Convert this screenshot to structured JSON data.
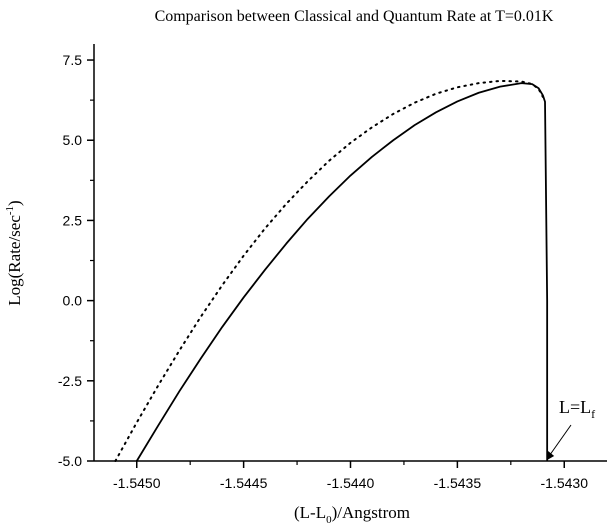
{
  "chart_data": {
    "type": "line",
    "title": "Comparison between Classical and Quantum Rate at T=0.01K",
    "xlabel": {
      "main": "(L-L",
      "sub": "0",
      "rest": ")/Angstrom"
    },
    "ylabel": {
      "main": "Log(Rate/sec",
      "sup": "-1",
      "rest": ")"
    },
    "xlim": [
      -1.5452,
      -1.5428
    ],
    "ylim": [
      -5.0,
      8.0
    ],
    "x_ticks": [
      -1.545,
      -1.5445,
      -1.544,
      -1.5435,
      -1.543
    ],
    "x_tick_labels": [
      "-1.5450",
      "-1.5445",
      "-1.5440",
      "-1.5435",
      "-1.5430"
    ],
    "y_ticks": [
      -5.0,
      -2.5,
      0.0,
      2.5,
      5.0,
      7.5
    ],
    "y_tick_labels": [
      "-5.0",
      "-2.5",
      "0.0",
      "2.5",
      "5.0",
      "7.5"
    ],
    "grid": false,
    "series": [
      {
        "style": "solid",
        "color": "#000000",
        "x": [
          -1.545,
          -1.5449,
          -1.5448,
          -1.5447,
          -1.5446,
          -1.5445,
          -1.5444,
          -1.5443,
          -1.5442,
          -1.5441,
          -1.544,
          -1.5439,
          -1.5438,
          -1.5437,
          -1.5436,
          -1.5435,
          -1.5434,
          -1.5433,
          -1.5432,
          -1.54315,
          -1.54312,
          -1.5431,
          -1.54309,
          -1.54308,
          -1.54308
        ],
        "y": [
          -5.0,
          -3.9,
          -2.82,
          -1.8,
          -0.82,
          0.1,
          0.96,
          1.78,
          2.55,
          3.25,
          3.9,
          4.48,
          5.0,
          5.47,
          5.87,
          6.21,
          6.48,
          6.67,
          6.78,
          6.75,
          6.62,
          6.4,
          6.2,
          0.0,
          -5.0
        ]
      },
      {
        "style": "dotted",
        "color": "#000000",
        "x": [
          -1.5451,
          -1.545,
          -1.5449,
          -1.5448,
          -1.5447,
          -1.5446,
          -1.5445,
          -1.5444,
          -1.5443,
          -1.5442,
          -1.5441,
          -1.544,
          -1.5439,
          -1.5438,
          -1.5437,
          -1.5436,
          -1.5435,
          -1.5434,
          -1.5433,
          -1.5432,
          -1.54315,
          -1.54312,
          -1.5431
        ],
        "y": [
          -5.0,
          -3.8,
          -2.65,
          -1.55,
          -0.5,
          0.48,
          1.4,
          2.25,
          3.02,
          3.72,
          4.36,
          4.92,
          5.4,
          5.82,
          6.17,
          6.45,
          6.65,
          6.78,
          6.85,
          6.83,
          6.75,
          6.6,
          6.35
        ]
      }
    ],
    "annotation": {
      "text": "L=L",
      "sub": "f",
      "x": -1.54308,
      "y": -5.0
    }
  }
}
